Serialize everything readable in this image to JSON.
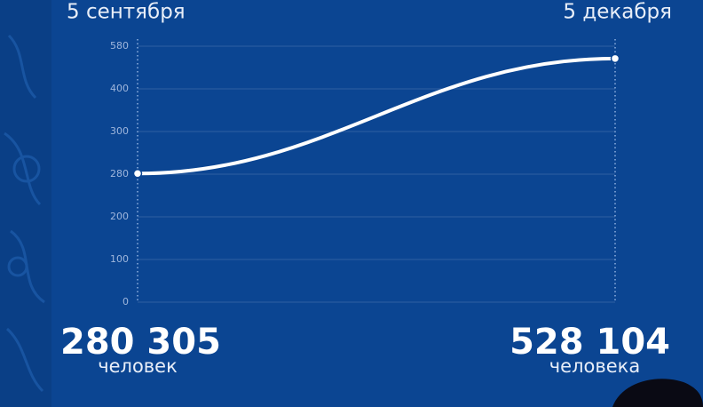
{
  "chart_data": {
    "type": "line",
    "x": [
      "5 сентября",
      "5 декабря"
    ],
    "values": [
      280.305,
      528.104
    ],
    "value_labels": [
      "280 305",
      "528 104"
    ],
    "value_units": [
      "человек",
      "человека"
    ],
    "ylim": [
      0,
      580
    ],
    "yticks": [
      0,
      100,
      200,
      280,
      300,
      400,
      580
    ],
    "color": "#ffffff",
    "grid": true
  }
}
